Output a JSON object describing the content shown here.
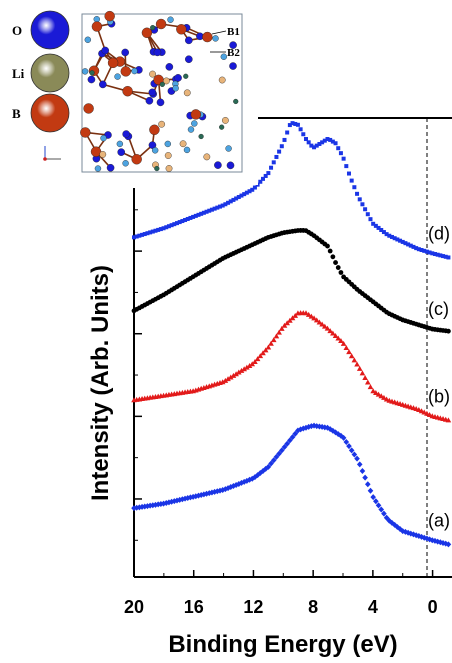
{
  "chart_data": {
    "type": "scatter",
    "xlabel": "Binding Energy (eV)",
    "ylabel": "Intensity (Arb. Units)",
    "xlim": [
      20,
      -1.3
    ],
    "x_reversed": true,
    "x_ticks": [
      20,
      16,
      12,
      8,
      4,
      0
    ],
    "y_ticks_visible": false,
    "fermi_reference_line": 0,
    "series": [
      {
        "label": "(d)",
        "color": "#1a35e6",
        "marker": "square",
        "x": [
          20,
          18,
          16,
          14,
          12,
          11,
          10,
          9.5,
          9,
          8.5,
          8,
          7.5,
          7,
          6.5,
          6,
          5.5,
          5,
          4,
          3,
          2,
          1,
          0,
          -1.2
        ],
        "y": [
          0.74,
          0.76,
          0.785,
          0.81,
          0.845,
          0.88,
          0.945,
          0.99,
          0.985,
          0.955,
          0.935,
          0.945,
          0.955,
          0.945,
          0.915,
          0.87,
          0.83,
          0.77,
          0.745,
          0.73,
          0.715,
          0.705,
          0.695
        ]
      },
      {
        "label": "(c)",
        "color": "#000000",
        "marker": "circle",
        "x": [
          20,
          18,
          16,
          14,
          12,
          11,
          10,
          9,
          8.5,
          8,
          7,
          6.5,
          6,
          5,
          4,
          3,
          2,
          1,
          0,
          -1.2
        ],
        "y": [
          0.58,
          0.615,
          0.655,
          0.695,
          0.725,
          0.74,
          0.75,
          0.755,
          0.755,
          0.745,
          0.72,
          0.685,
          0.655,
          0.625,
          0.6,
          0.575,
          0.56,
          0.55,
          0.54,
          0.535
        ]
      },
      {
        "label": "(b)",
        "color": "#e21a1a",
        "marker": "triangle",
        "x": [
          20,
          18,
          16,
          14,
          12,
          11,
          10,
          9,
          8.5,
          8,
          7,
          6,
          5,
          4,
          3,
          2,
          1,
          0,
          -1.2
        ],
        "y": [
          0.385,
          0.395,
          0.405,
          0.425,
          0.465,
          0.5,
          0.545,
          0.575,
          0.575,
          0.565,
          0.54,
          0.51,
          0.46,
          0.405,
          0.385,
          0.375,
          0.365,
          0.35,
          0.34
        ]
      },
      {
        "label": "(a)",
        "color": "#1a35e6",
        "marker": "diamond",
        "x": [
          20,
          18,
          16,
          14,
          12,
          11,
          10,
          9,
          8,
          7,
          6,
          5,
          4,
          3,
          2,
          1,
          0,
          -1.2
        ],
        "y": [
          0.15,
          0.16,
          0.175,
          0.19,
          0.215,
          0.24,
          0.28,
          0.32,
          0.33,
          0.325,
          0.305,
          0.255,
          0.175,
          0.125,
          0.1,
          0.09,
          0.08,
          0.07
        ]
      }
    ]
  },
  "inset": {
    "legend": [
      {
        "label": "O",
        "color": "#1a1ad6"
      },
      {
        "label": "Li",
        "color": "#8a8a58"
      },
      {
        "label": "B",
        "color": "#c23a12"
      }
    ],
    "site_labels": [
      "B1",
      "B2"
    ]
  }
}
